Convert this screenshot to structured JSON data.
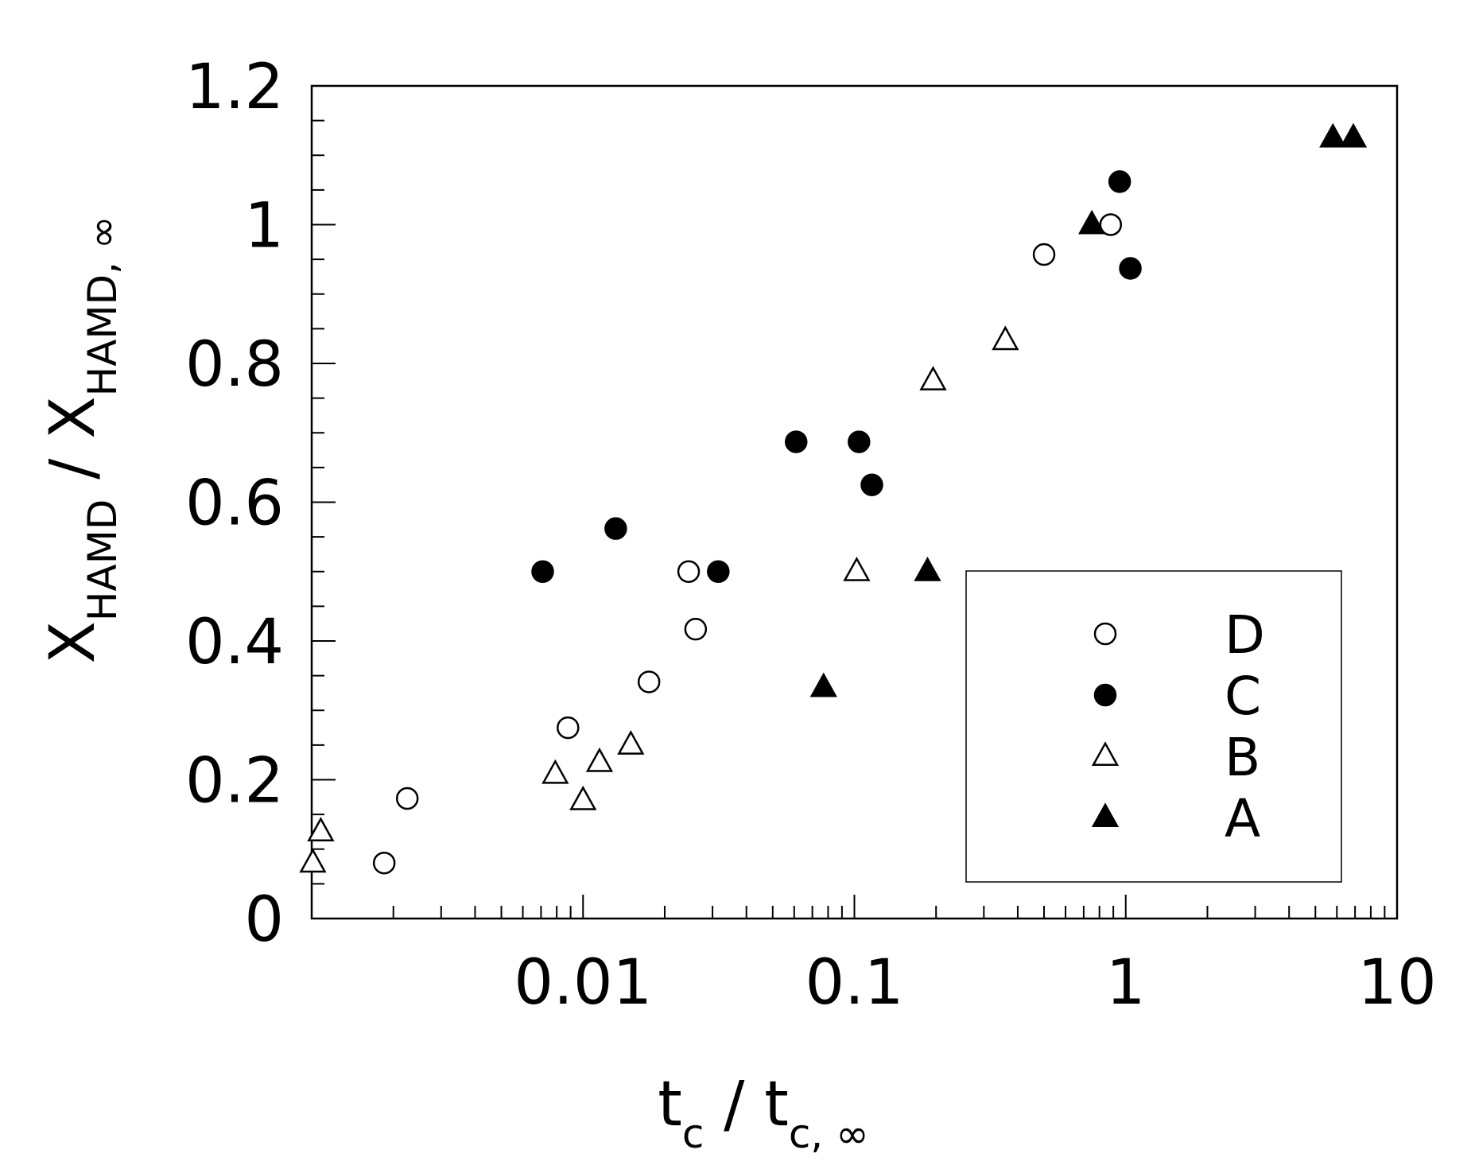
{
  "chart_data": {
    "type": "scatter",
    "x_scale": "log",
    "xlim": [
      0.001,
      10
    ],
    "ylim": [
      0,
      1.2
    ],
    "grid": false,
    "legend_placement": "bottom-right",
    "xlabel": {
      "main": "t",
      "sub": "c",
      "sep": " / ",
      "main2": "t",
      "sub2": "c, ∞"
    },
    "ylabel": {
      "main": "X",
      "sub": "HAMD",
      "sep": " / ",
      "main2": "X",
      "sub2": "HAMD, ∞"
    },
    "x_ticks": [
      {
        "value": 0.01,
        "label": "0.01"
      },
      {
        "value": 0.1,
        "label": "0.1"
      },
      {
        "value": 1,
        "label": "1"
      },
      {
        "value": 10,
        "label": "10"
      }
    ],
    "y_ticks": [
      {
        "value": 0,
        "label": "0"
      },
      {
        "value": 0.2,
        "label": "0.2"
      },
      {
        "value": 0.4,
        "label": "0.4"
      },
      {
        "value": 0.6,
        "label": "0.6"
      },
      {
        "value": 0.8,
        "label": "0.8"
      },
      {
        "value": 1,
        "label": "1"
      },
      {
        "value": 1.2,
        "label": "1.2"
      }
    ],
    "series": [
      {
        "name": "D",
        "marker": "circle-open",
        "points": [
          [
            0.00185,
            0.08
          ],
          [
            0.00225,
            0.173
          ],
          [
            0.0088,
            0.275
          ],
          [
            0.0175,
            0.341
          ],
          [
            0.0245,
            0.5
          ],
          [
            0.026,
            0.417
          ],
          [
            0.5,
            0.957
          ],
          [
            0.88,
            1.0
          ]
        ]
      },
      {
        "name": "C",
        "marker": "circle-filled",
        "points": [
          [
            0.0071,
            0.5
          ],
          [
            0.0132,
            0.562
          ],
          [
            0.0315,
            0.5
          ],
          [
            0.061,
            0.687
          ],
          [
            0.104,
            0.687
          ],
          [
            0.116,
            0.625
          ],
          [
            0.95,
            1.062
          ],
          [
            1.04,
            0.937
          ]
        ]
      },
      {
        "name": "B",
        "marker": "triangle-open",
        "points": [
          [
            0.00101,
            0.08
          ],
          [
            0.00108,
            0.125
          ],
          [
            0.0079,
            0.208
          ],
          [
            0.01,
            0.17
          ],
          [
            0.0115,
            0.225
          ],
          [
            0.015,
            0.25
          ],
          [
            0.102,
            0.5
          ],
          [
            0.195,
            0.775
          ],
          [
            0.36,
            0.833
          ]
        ]
      },
      {
        "name": "A",
        "marker": "triangle-filled",
        "points": [
          [
            0.077,
            0.333
          ],
          [
            0.186,
            0.5
          ],
          [
            0.75,
            1.0
          ],
          [
            5.8,
            1.125
          ],
          [
            6.9,
            1.125
          ]
        ]
      }
    ],
    "legend_order": [
      "D",
      "C",
      "B",
      "A"
    ]
  }
}
